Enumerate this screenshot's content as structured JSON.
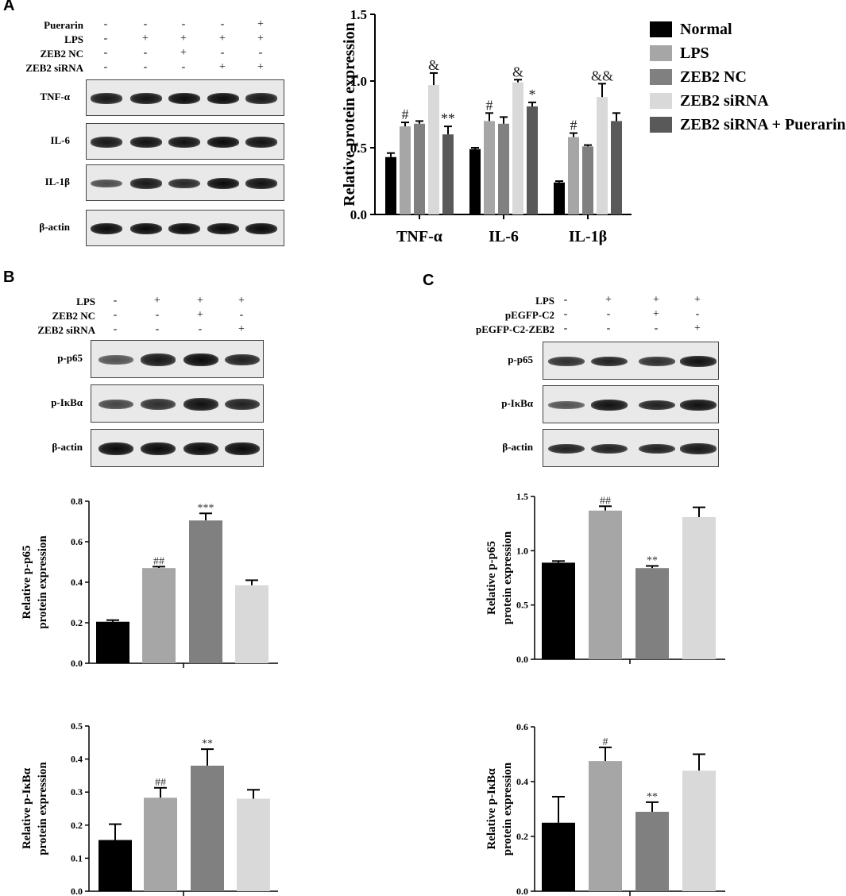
{
  "panels": {
    "a": "A",
    "b": "B",
    "c": "C"
  },
  "panelA": {
    "conditions": [
      {
        "label": "Puerarin",
        "signs": [
          "-",
          "-",
          "-",
          "-",
          "+"
        ]
      },
      {
        "label": "LPS",
        "signs": [
          "-",
          "+",
          "+",
          "+",
          "+"
        ]
      },
      {
        "label": "ZEB2 NC",
        "signs": [
          "-",
          "-",
          "+",
          "-",
          "-"
        ]
      },
      {
        "label": "ZEB2 siRNA",
        "signs": [
          "-",
          "-",
          "-",
          "+",
          "+"
        ]
      }
    ],
    "blots": [
      {
        "label": "TNF-α",
        "intensity": [
          0.9,
          0.95,
          1.0,
          1.0,
          0.9
        ]
      },
      {
        "label": "IL-6",
        "intensity": [
          0.9,
          0.95,
          0.95,
          1.0,
          0.95
        ]
      },
      {
        "label": "IL-1β",
        "intensity": [
          0.55,
          0.9,
          0.8,
          1.0,
          0.95
        ]
      },
      {
        "label": "β-actin",
        "intensity": [
          1.0,
          1.0,
          1.0,
          1.0,
          1.0
        ]
      }
    ]
  },
  "panelB": {
    "conditions": [
      {
        "label": "LPS",
        "signs": [
          "-",
          "+",
          "+",
          "+"
        ]
      },
      {
        "label": "ZEB2 NC",
        "signs": [
          "-",
          "-",
          "+",
          "-"
        ]
      },
      {
        "label": "ZEB2 siRNA",
        "signs": [
          "-",
          "-",
          "-",
          "+"
        ]
      }
    ],
    "blots": [
      {
        "label": "p-p65",
        "intensity": [
          0.5,
          0.9,
          1.0,
          0.85
        ]
      },
      {
        "label": "p-IκBα",
        "intensity": [
          0.6,
          0.75,
          0.95,
          0.85
        ]
      },
      {
        "label": "β-actin",
        "intensity": [
          1.0,
          1.0,
          1.0,
          1.0
        ]
      }
    ]
  },
  "panelC": {
    "conditions": [
      {
        "label": "LPS",
        "signs": [
          "-",
          "+",
          "+",
          "+"
        ]
      },
      {
        "label": "pEGFP-C2",
        "signs": [
          "-",
          "-",
          "+",
          "-"
        ]
      },
      {
        "label": "pEGFP-C2-ZEB2",
        "signs": [
          "-",
          "-",
          "-",
          "+"
        ]
      }
    ],
    "blots": [
      {
        "label": "p-p65",
        "intensity": [
          0.75,
          0.85,
          0.75,
          0.95
        ]
      },
      {
        "label": "p-IκBα",
        "intensity": [
          0.5,
          0.95,
          0.85,
          0.95
        ]
      },
      {
        "label": "β-actin",
        "intensity": [
          0.85,
          0.85,
          0.85,
          0.9
        ]
      }
    ]
  },
  "colors": {
    "Normal": "#000000",
    "LPS": "#a6a6a6",
    "ZEB2 NC": "#808080",
    "ZEB2 siRNA": "#d9d9d9",
    "ZEB2 siRNA + Puerarin": "#595959"
  },
  "chart_data": [
    {
      "id": "A-bar",
      "type": "bar",
      "ylabel": "Relative protein expression",
      "ylim": [
        0,
        1.5
      ],
      "yticks": [
        "0.0",
        "0.5",
        "1.0",
        "1.5"
      ],
      "categories": [
        "TNF-α",
        "IL-6",
        "IL-1β"
      ],
      "legend_position": "right",
      "series": [
        {
          "name": "Normal",
          "values": [
            0.43,
            0.49,
            0.24
          ],
          "errors": [
            0.03,
            0.01,
            0.01
          ],
          "annotations": [
            "",
            "",
            ""
          ]
        },
        {
          "name": "LPS",
          "values": [
            0.66,
            0.7,
            0.58
          ],
          "errors": [
            0.03,
            0.06,
            0.03
          ],
          "annotations": [
            "#",
            "#",
            "#"
          ]
        },
        {
          "name": "ZEB2 NC",
          "values": [
            0.68,
            0.68,
            0.51
          ],
          "errors": [
            0.02,
            0.05,
            0.01
          ],
          "annotations": [
            "",
            "",
            ""
          ]
        },
        {
          "name": "ZEB2 siRNA",
          "values": [
            0.97,
            0.99,
            0.88
          ],
          "errors": [
            0.09,
            0.02,
            0.1
          ],
          "annotations": [
            "&",
            "&",
            "&&"
          ]
        },
        {
          "name": "ZEB2 siRNA + Puerarin",
          "values": [
            0.6,
            0.81,
            0.7
          ],
          "errors": [
            0.06,
            0.03,
            0.06
          ],
          "annotations": [
            "**",
            "*",
            ""
          ]
        }
      ]
    },
    {
      "id": "B-p65",
      "type": "bar",
      "ylabel": [
        "Relative p-p65",
        "protein expression"
      ],
      "ylim": [
        0,
        0.8
      ],
      "yticks": [
        "0.0",
        "0.2",
        "0.4",
        "0.6",
        "0.8"
      ],
      "bars": [
        {
          "group": "Normal",
          "value": 0.205,
          "error": 0.008,
          "annotation": ""
        },
        {
          "group": "LPS",
          "value": 0.47,
          "error": 0.007,
          "annotation": "##"
        },
        {
          "group": "ZEB2 NC",
          "value": 0.705,
          "error": 0.035,
          "annotation": "***"
        },
        {
          "group": "ZEB2 siRNA",
          "value": 0.385,
          "error": 0.025,
          "annotation": ""
        }
      ]
    },
    {
      "id": "B-IkBa",
      "type": "bar",
      "ylabel": [
        "Relative p-IκBα",
        "protein expression"
      ],
      "ylim": [
        0,
        0.5
      ],
      "yticks": [
        "0.0",
        "0.1",
        "0.2",
        "0.3",
        "0.4",
        "0.5"
      ],
      "bars": [
        {
          "group": "Normal",
          "value": 0.155,
          "error": 0.048,
          "annotation": ""
        },
        {
          "group": "LPS",
          "value": 0.283,
          "error": 0.03,
          "annotation": "##"
        },
        {
          "group": "ZEB2 NC",
          "value": 0.38,
          "error": 0.05,
          "annotation": "**"
        },
        {
          "group": "ZEB2 siRNA",
          "value": 0.28,
          "error": 0.027,
          "annotation": ""
        }
      ]
    },
    {
      "id": "C-p65",
      "type": "bar",
      "ylabel": [
        "Relative p-p65",
        "protein expression"
      ],
      "ylim": [
        0,
        1.5
      ],
      "yticks": [
        "0.0",
        "0.5",
        "1.0",
        "1.5"
      ],
      "bars": [
        {
          "group": "Normal",
          "value": 0.89,
          "error": 0.015,
          "annotation": ""
        },
        {
          "group": "LPS",
          "value": 1.37,
          "error": 0.04,
          "annotation": "##"
        },
        {
          "group": "ZEB2 NC",
          "value": 0.84,
          "error": 0.02,
          "annotation": "**"
        },
        {
          "group": "ZEB2 siRNA",
          "value": 1.31,
          "error": 0.09,
          "annotation": ""
        }
      ]
    },
    {
      "id": "C-IkBa",
      "type": "bar",
      "ylabel": [
        "Relative p-IκBα",
        "protein expression"
      ],
      "ylim": [
        0,
        0.6
      ],
      "yticks": [
        "0.0",
        "0.2",
        "0.4",
        "0.6"
      ],
      "bars": [
        {
          "group": "Normal",
          "value": 0.25,
          "error": 0.095,
          "annotation": ""
        },
        {
          "group": "LPS",
          "value": 0.475,
          "error": 0.05,
          "annotation": "#"
        },
        {
          "group": "ZEB2 NC",
          "value": 0.29,
          "error": 0.035,
          "annotation": "**"
        },
        {
          "group": "ZEB2 siRNA",
          "value": 0.44,
          "error": 0.06,
          "annotation": ""
        }
      ]
    }
  ]
}
